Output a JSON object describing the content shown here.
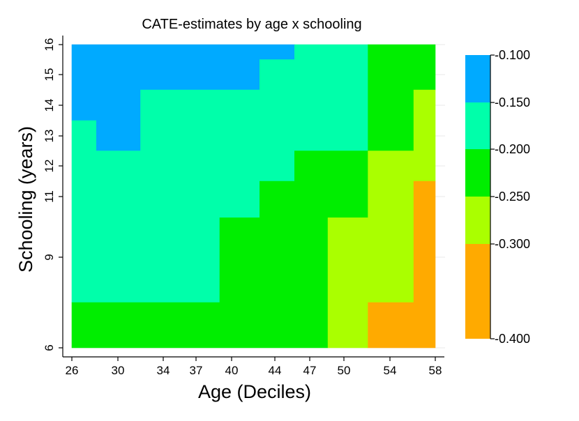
{
  "chart_data": {
    "type": "heatmap",
    "title": "CATE-estimates  by age x schooling",
    "xlabel": "Age (Deciles)",
    "ylabel": "Schooling (years)",
    "xlim": [
      26,
      58
    ],
    "ylim": [
      6,
      16
    ],
    "x_ticks": [
      26,
      30,
      34,
      37,
      40,
      44,
      47,
      50,
      54,
      58
    ],
    "x_tick_labels": [
      "26",
      "30",
      "34",
      "37",
      "40",
      "44",
      "47",
      "50",
      "54",
      "58"
    ],
    "y_ticks": [
      6,
      9,
      11,
      12,
      13,
      14,
      15,
      16
    ],
    "y_tick_labels": [
      "6",
      "9",
      "11",
      "12",
      "13",
      "14",
      "15",
      "16"
    ],
    "legend": {
      "placement": "right",
      "breaks": [
        -0.4,
        -0.3,
        -0.25,
        -0.2,
        -0.15,
        -0.1
      ],
      "labels": [
        "-0.400",
        "-0.300",
        "-0.250",
        "-0.200",
        "-0.150",
        "-0.100"
      ],
      "colors": [
        "#ffaa00",
        "#aaff00",
        "#00ee00",
        "#00ffaa",
        "#00aaff"
      ]
    },
    "regions": [
      {
        "bin": "-0.100 to -0.150",
        "color": "#00aaff",
        "polygon": [
          [
            26,
            13.5
          ],
          [
            28.1,
            13.5
          ],
          [
            28.1,
            12.5
          ],
          [
            32,
            12.5
          ],
          [
            32,
            14.5
          ],
          [
            42.6,
            14.5
          ],
          [
            42.6,
            15.5
          ],
          [
            45.7,
            15.5
          ],
          [
            45.7,
            16
          ],
          [
            26,
            16
          ]
        ]
      },
      {
        "bin": "-0.150 to -0.200",
        "color": "#00ffaa",
        "polygon": [
          [
            26,
            7.5
          ],
          [
            39,
            7.5
          ],
          [
            39,
            10.3
          ],
          [
            42.6,
            10.3
          ],
          [
            42.6,
            11.5
          ],
          [
            45.7,
            11.5
          ],
          [
            45.7,
            12.5
          ],
          [
            52.1,
            12.5
          ],
          [
            52.1,
            16
          ],
          [
            45.7,
            16
          ],
          [
            45.7,
            15.5
          ],
          [
            42.6,
            15.5
          ],
          [
            42.6,
            14.5
          ],
          [
            32,
            14.5
          ],
          [
            32,
            12.5
          ],
          [
            28.1,
            12.5
          ],
          [
            28.1,
            13.5
          ],
          [
            26,
            13.5
          ]
        ]
      },
      {
        "bin": "-0.200 to -0.250",
        "color": "#00ee00",
        "polygon": [
          [
            26,
            6
          ],
          [
            48.6,
            6
          ],
          [
            48.6,
            10.3
          ],
          [
            52.1,
            10.3
          ],
          [
            52.1,
            12.5
          ],
          [
            56.1,
            12.5
          ],
          [
            56.1,
            14.5
          ],
          [
            58,
            14.5
          ],
          [
            58,
            16
          ],
          [
            52.1,
            16
          ],
          [
            52.1,
            12.5
          ],
          [
            45.7,
            12.5
          ],
          [
            45.7,
            11.5
          ],
          [
            42.6,
            11.5
          ],
          [
            42.6,
            10.3
          ],
          [
            39,
            10.3
          ],
          [
            39,
            7.5
          ],
          [
            26,
            7.5
          ]
        ]
      },
      {
        "bin": "-0.250 to -0.300",
        "color": "#aaff00",
        "polygon": [
          [
            48.6,
            6
          ],
          [
            52.1,
            6
          ],
          [
            52.1,
            7.5
          ],
          [
            56.1,
            7.5
          ],
          [
            56.1,
            11.5
          ],
          [
            58,
            11.5
          ],
          [
            58,
            14.5
          ],
          [
            56.1,
            14.5
          ],
          [
            56.1,
            12.5
          ],
          [
            52.1,
            12.5
          ],
          [
            52.1,
            10.3
          ],
          [
            48.6,
            10.3
          ]
        ]
      },
      {
        "bin": "-0.300 to -0.400",
        "color": "#ffaa00",
        "polygon": [
          [
            52.1,
            6
          ],
          [
            58,
            6
          ],
          [
            58,
            11.5
          ],
          [
            56.1,
            11.5
          ],
          [
            56.1,
            7.5
          ],
          [
            52.1,
            7.5
          ]
        ]
      }
    ]
  }
}
